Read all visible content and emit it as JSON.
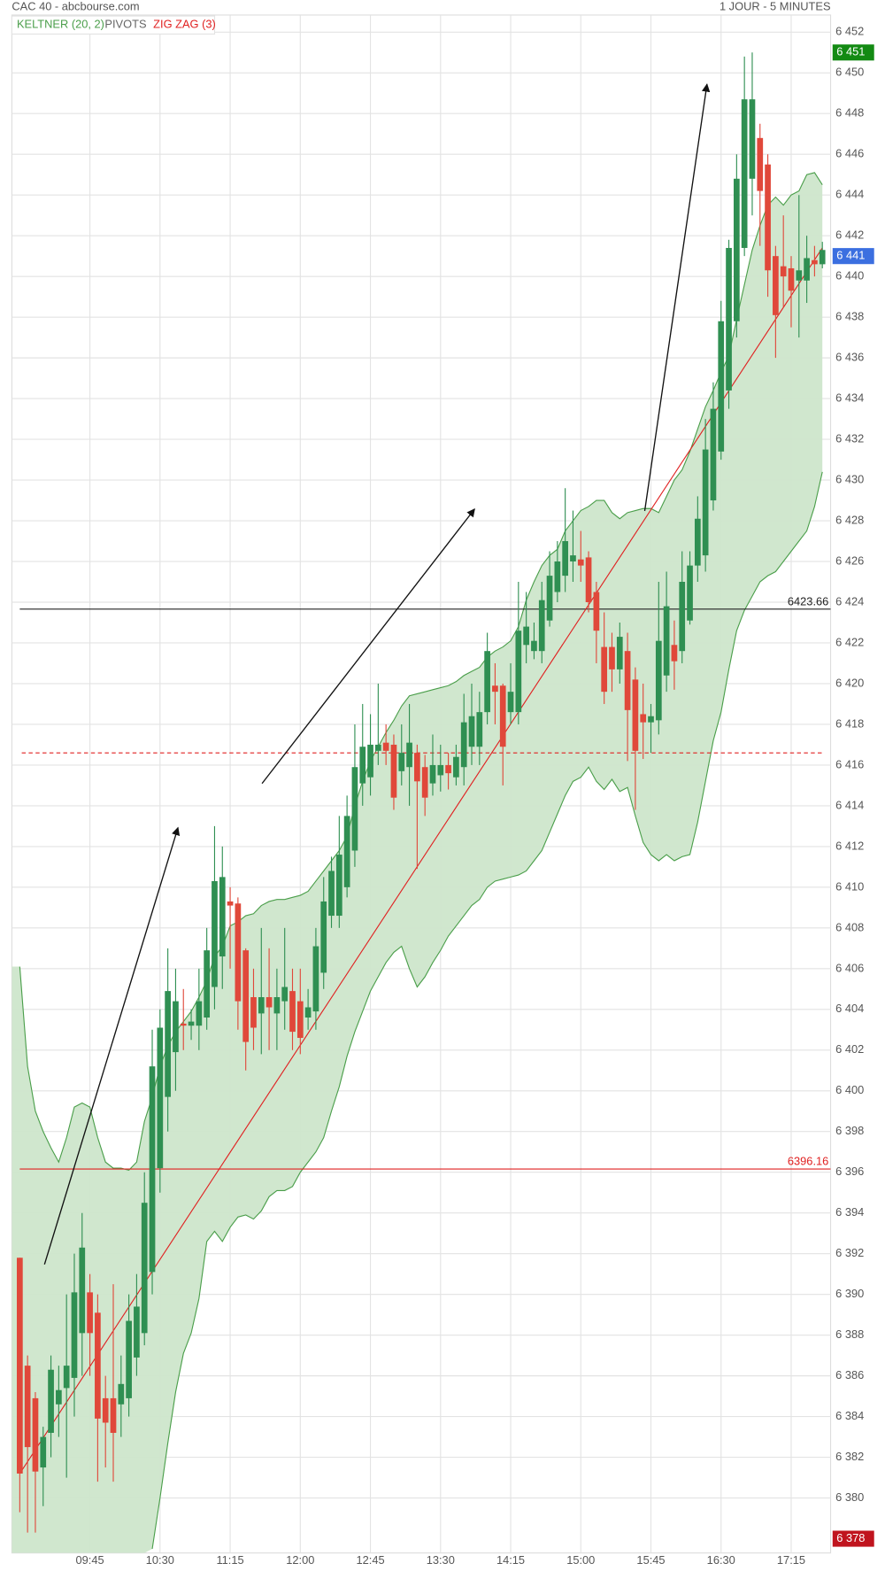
{
  "chart_data": {
    "type": "candlestick",
    "title": "CAC 40 - abcbourse.com",
    "subtitle": "1 JOUR - 5 MINUTES",
    "up_color": "#2f8f52",
    "down_color": "#e0483a",
    "categories": [
      null,
      null,
      null,
      null,
      null,
      null,
      null,
      null,
      null,
      "09:45",
      null,
      null,
      null,
      null,
      null,
      null,
      null,
      null,
      "10:30",
      null,
      null,
      null,
      null,
      null,
      null,
      null,
      null,
      "11:15",
      null,
      null,
      null,
      null,
      null,
      null,
      null,
      null,
      "12:00",
      null,
      null,
      null,
      null,
      null,
      null,
      null,
      null,
      "12:45",
      null,
      null,
      null,
      null,
      null,
      null,
      null,
      null,
      "13:30",
      null,
      null,
      null,
      null,
      null,
      null,
      null,
      null,
      "14:15",
      null,
      null,
      null,
      null,
      null,
      null,
      null,
      null,
      "15:00",
      null,
      null,
      null,
      null,
      null,
      null,
      null,
      null,
      "15:45",
      null,
      null,
      null,
      null,
      null,
      null,
      null,
      null,
      "16:30",
      null,
      null,
      null,
      null,
      null,
      null,
      null,
      null,
      "17:15",
      null,
      null,
      null,
      null
    ],
    "open": [
      6391.8,
      6386.5,
      6384.9,
      6381.5,
      6383.2,
      6384.6,
      6385.4,
      6385.9,
      6388.1,
      6390.1,
      6389.1,
      6384.9,
      6384.9,
      6384.6,
      6384.9,
      6386.9,
      6388.1,
      6391.1,
      6396.2,
      6399.7,
      6401.9,
      6403.3,
      6403.2,
      6403.2,
      6403.6,
      6405.1,
      6406.6,
      6409.3,
      6409.2,
      6406.9,
      6404.6,
      6403.8,
      6404.6,
      6403.8,
      6404.4,
      6404.9,
      6404.4,
      6403.6,
      6403.9,
      6405.8,
      6408.6,
      6408.6,
      6410,
      6411.8,
      6415.1,
      6415.4,
      6416.7,
      6417.1,
      6417,
      6415.7,
      6415.9,
      6416.6,
      6415.9,
      6415.1,
      6415.5,
      6416,
      6415.4,
      6415.9,
      6416.9,
      6416.9,
      6418.6,
      6419.9,
      6419.9,
      6418.6,
      6418.6,
      6421.9,
      6421.6,
      6421.6,
      6423.1,
      6424.5,
      6425.3,
      6426,
      6426.1,
      6426.2,
      6424.5,
      6421.8,
      6421.8,
      6420.7,
      6421.6,
      6420.2,
      6418.5,
      6418.1,
      6418.2,
      6420.4,
      6421.9,
      6421.6,
      6423.1,
      6425.8,
      6426.3,
      6429,
      6431.4,
      6434.4,
      6437.8,
      6441.4,
      6444.8,
      6446.8,
      6445.5,
      6441,
      6440.5,
      6440.4,
      6439.8,
      6439.8,
      6440.8,
      6440.6
    ],
    "high": [
      6391.8,
      6387,
      6385.2,
      6383.5,
      6387,
      6386.5,
      6390,
      6392,
      6394,
      6391,
      6390,
      6386,
      6390.5,
      6387,
      6390,
      6391,
      6396,
      6403,
      6404,
      6407,
      6406,
      6405,
      6404,
      6406,
      6408,
      6413,
      6412,
      6410,
      6409.5,
      6407,
      6406,
      6408,
      6407,
      6406,
      6408,
      6406,
      6406,
      6405,
      6408,
      6410.5,
      6411.5,
      6413.5,
      6414.5,
      6418,
      6419,
      6418.5,
      6420,
      6418,
      6417.5,
      6418,
      6419,
      6417,
      6416.5,
      6417.5,
      6417,
      6416.6,
      6417,
      6419.5,
      6420,
      6419.6,
      6422.5,
      6421,
      6420,
      6421,
      6425,
      6424.5,
      6423,
      6425,
      6426.5,
      6427,
      6429.6,
      6428.5,
      6427.5,
      6426.5,
      6425,
      6423.5,
      6422.5,
      6423,
      6422.5,
      6420.8,
      6420,
      6419,
      6425,
      6425.5,
      6423.1,
      6426.5,
      6426.5,
      6429.2,
      6433,
      6434.8,
      6438.8,
      6441.8,
      6446,
      6450.8,
      6451,
      6447.5,
      6446,
      6441.5,
      6443,
      6441,
      6444,
      6442,
      6441.5,
      6441.7
    ],
    "low": [
      6379.3,
      6378.3,
      6378.3,
      6379.6,
      6382,
      6383,
      6381,
      6384,
      6386,
      6386,
      6380.8,
      6381.5,
      6380.8,
      6383,
      6384,
      6386,
      6387.5,
      6390,
      6395,
      6398,
      6400,
      6402,
      6402.5,
      6402,
      6403,
      6404,
      6405,
      6406,
      6403,
      6401,
      6402,
      6401.8,
      6402,
      6402,
      6403,
      6402,
      6401.8,
      6403,
      6403,
      6405,
      6408,
      6408,
      6409.5,
      6411,
      6414,
      6414.5,
      6416,
      6416,
      6413.8,
      6415,
      6414,
      6410.9,
      6413.5,
      6414.5,
      6414.7,
      6414.8,
      6415,
      6415,
      6416,
      6416,
      6418,
      6418,
      6415,
      6418,
      6418,
      6421,
      6421.2,
      6421,
      6422.8,
      6424,
      6424.5,
      6425,
      6425,
      6423.5,
      6421,
      6419,
      6419.6,
      6420,
      6416.2,
      6413.8,
      6416.3,
      6416.6,
      6417.5,
      6419.6,
      6419.7,
      6421,
      6422.9,
      6425,
      6425.5,
      6428.5,
      6431,
      6433.5,
      6437,
      6441,
      6443,
      6441.5,
      6439,
      6436,
      6438.5,
      6437.5,
      6437,
      6438.7,
      6440,
      6440.4
    ],
    "close": [
      6381.2,
      6382.5,
      6381.3,
      6383,
      6386.3,
      6385.3,
      6386.5,
      6390.1,
      6392.3,
      6388.1,
      6383.9,
      6383.7,
      6383.2,
      6385.6,
      6388.7,
      6389.4,
      6394.5,
      6401.2,
      6403.1,
      6404.9,
      6404.4,
      6403.2,
      6403.4,
      6404.4,
      6406.9,
      6410.3,
      6410.5,
      6409.1,
      6404.4,
      6402.4,
      6403.1,
      6404.6,
      6404.1,
      6404.6,
      6405.1,
      6402.9,
      6402.6,
      6404.1,
      6407.1,
      6409.3,
      6410.8,
      6411.6,
      6413.5,
      6415.9,
      6416.9,
      6417,
      6417,
      6416.7,
      6414.4,
      6416.6,
      6417.1,
      6415.2,
      6414.4,
      6416,
      6416,
      6415.6,
      6416.4,
      6418.1,
      6418.4,
      6418.6,
      6421.6,
      6419.6,
      6416.9,
      6419.6,
      6422.6,
      6422.8,
      6422.1,
      6424.1,
      6425.3,
      6426,
      6427,
      6426.3,
      6425.8,
      6424,
      6422.6,
      6419.6,
      6420.7,
      6422.3,
      6418.7,
      6416.7,
      6418.1,
      6418.4,
      6422.1,
      6423.8,
      6421.1,
      6425,
      6425.8,
      6428.1,
      6431.5,
      6433.5,
      6437.8,
      6441.4,
      6444.8,
      6448.7,
      6448.7,
      6444.2,
      6440.3,
      6438.1,
      6440,
      6439.3,
      6440.3,
      6440.9,
      6440.6,
      6441.3
    ],
    "keltner": {
      "name": "KELTNER (20, 2)",
      "color": "#4a9e4a",
      "fill": "#cde6cb",
      "upper": [
        6406.1,
        6401.2,
        6399,
        6398,
        6397.2,
        6396.5,
        6397.7,
        6399.2,
        6399.4,
        6399.2,
        6397.7,
        6396.5,
        6396.2,
        6396.2,
        6396.1,
        6396.5,
        6398.5,
        6399.7,
        6401.2,
        6402.2,
        6402.9,
        6403.4,
        6403.9,
        6404.6,
        6405.4,
        6406.6,
        6407.1,
        6408.1,
        6408.3,
        6408.6,
        6408.7,
        6409.1,
        6409.3,
        6409.4,
        6409.4,
        6409.5,
        6409.6,
        6409.8,
        6410.3,
        6410.8,
        6411.3,
        6411.8,
        6412.5,
        6414,
        6415.2,
        6416.2,
        6416.9,
        6417.6,
        6418.2,
        6418.9,
        6419.4,
        6419.5,
        6419.6,
        6419.7,
        6419.8,
        6419.9,
        6420.1,
        6420.4,
        6420.6,
        6420.8,
        6421.3,
        6421.6,
        6421.8,
        6422.1,
        6422.8,
        6424.1,
        6425,
        6425.8,
        6426.3,
        6426.6,
        6427.5,
        6428,
        6428.5,
        6428.7,
        6429,
        6429,
        6428.4,
        6428.1,
        6428.4,
        6428.5,
        6428.6,
        6428.6,
        6428.4,
        6429.2,
        6430,
        6430.5,
        6431.4,
        6432.5,
        6433.6,
        6434.4,
        6435.3,
        6436.1,
        6437.9,
        6439.6,
        6441.3,
        6442.5,
        6443.5,
        6443.9,
        6443.5,
        6444,
        6444.2,
        6445,
        6445.1,
        6444.5
      ],
      "lower": [
        null,
        null,
        null,
        null,
        null,
        null,
        null,
        null,
        null,
        null,
        null,
        null,
        null,
        null,
        null,
        null,
        null,
        6377.5,
        6380,
        6382.7,
        6385.2,
        6387.1,
        6388.1,
        6389.8,
        6392.6,
        6393.1,
        6392.6,
        6393.3,
        6393.8,
        6393.9,
        6393.7,
        6394.1,
        6394.8,
        6395.1,
        6395.1,
        6395.3,
        6396,
        6396.5,
        6397,
        6397.7,
        6399,
        6400.2,
        6401.7,
        6402.9,
        6403.9,
        6404.9,
        6405.6,
        6406.3,
        6406.8,
        6407.1,
        6406,
        6405.1,
        6405.6,
        6406.3,
        6406.9,
        6407.6,
        6408.1,
        6408.6,
        6409.1,
        6409.4,
        6410,
        6410.3,
        6410.4,
        6410.5,
        6410.6,
        6410.8,
        6411.3,
        6411.8,
        6412.7,
        6413.6,
        6414.5,
        6415.2,
        6415.4,
        6415.9,
        6415.2,
        6414.8,
        6415.3,
        6414.7,
        6414.9,
        6413.5,
        6412.2,
        6411.6,
        6411.3,
        6411.6,
        6411.3,
        6411.5,
        6411.6,
        6413.2,
        6415.2,
        6417.2,
        6418.6,
        6420.7,
        6422.6,
        6423.6,
        6424.3,
        6425,
        6425.3,
        6425.5,
        6426,
        6426.5,
        6427,
        6427.5,
        6428.7,
        6430.4
      ]
    },
    "pivots": {
      "name": "PIVOTS",
      "color": "#666666",
      "lines": [
        {
          "value": 6423.66,
          "color": "#222222"
        },
        {
          "value": 6396.16,
          "color": "#e02020"
        }
      ]
    },
    "reference_line": {
      "value": 6416.6,
      "color": "#e02020",
      "dashed": true
    },
    "zigzag": {
      "name": "ZIG ZAG (3)",
      "color": "#e02020",
      "x": [
        0,
        103
      ],
      "values": [
        6381.2,
        6441.4
      ]
    },
    "price_tags": [
      {
        "value": 6451,
        "label": "6 451",
        "color": "#138a13"
      },
      {
        "value": 6441,
        "label": "6 441",
        "color": "#3b6fe0"
      },
      {
        "value": 6378,
        "label": "6 378",
        "color": "#c0141e"
      }
    ],
    "ylim": [
      6377.3,
      6452.84
    ],
    "yticks": [
      {
        "value": 6380,
        "label": "6 380"
      },
      {
        "value": 6382,
        "label": "6 382"
      },
      {
        "value": 6384,
        "label": "6 384"
      },
      {
        "value": 6386,
        "label": "6 386"
      },
      {
        "value": 6388,
        "label": "6 388"
      },
      {
        "value": 6390,
        "label": "6 390"
      },
      {
        "value": 6392,
        "label": "6 392"
      },
      {
        "value": 6394,
        "label": "6 394"
      },
      {
        "value": 6396,
        "label": "6 396"
      },
      {
        "value": 6398,
        "label": "6 398"
      },
      {
        "value": 6400,
        "label": "6 400"
      },
      {
        "value": 6402,
        "label": "6 402"
      },
      {
        "value": 6404,
        "label": "6 404"
      },
      {
        "value": 6406,
        "label": "6 406"
      },
      {
        "value": 6408,
        "label": "6 408"
      },
      {
        "value": 6410,
        "label": "6 410"
      },
      {
        "value": 6412,
        "label": "6 412"
      },
      {
        "value": 6414,
        "label": "6 414"
      },
      {
        "value": 6416,
        "label": "6 416"
      },
      {
        "value": 6418,
        "label": "6 418"
      },
      {
        "value": 6420,
        "label": "6 420"
      },
      {
        "value": 6422,
        "label": "6 422"
      },
      {
        "value": 6424,
        "label": "6 424"
      },
      {
        "value": 6426,
        "label": "6 426"
      },
      {
        "value": 6428,
        "label": "6 428"
      },
      {
        "value": 6430,
        "label": "6 430"
      },
      {
        "value": 6432,
        "label": "6 432"
      },
      {
        "value": 6434,
        "label": "6 434"
      },
      {
        "value": 6436,
        "label": "6 436"
      },
      {
        "value": 6438,
        "label": "6 438"
      },
      {
        "value": 6440,
        "label": "6 440"
      },
      {
        "value": 6442,
        "label": "6 442"
      },
      {
        "value": 6444,
        "label": "6 444"
      },
      {
        "value": 6446,
        "label": "6 446"
      },
      {
        "value": 6448,
        "label": "6 448"
      },
      {
        "value": 6450,
        "label": "6 450"
      },
      {
        "value": 6452,
        "label": "6 452"
      }
    ],
    "grid": true
  }
}
